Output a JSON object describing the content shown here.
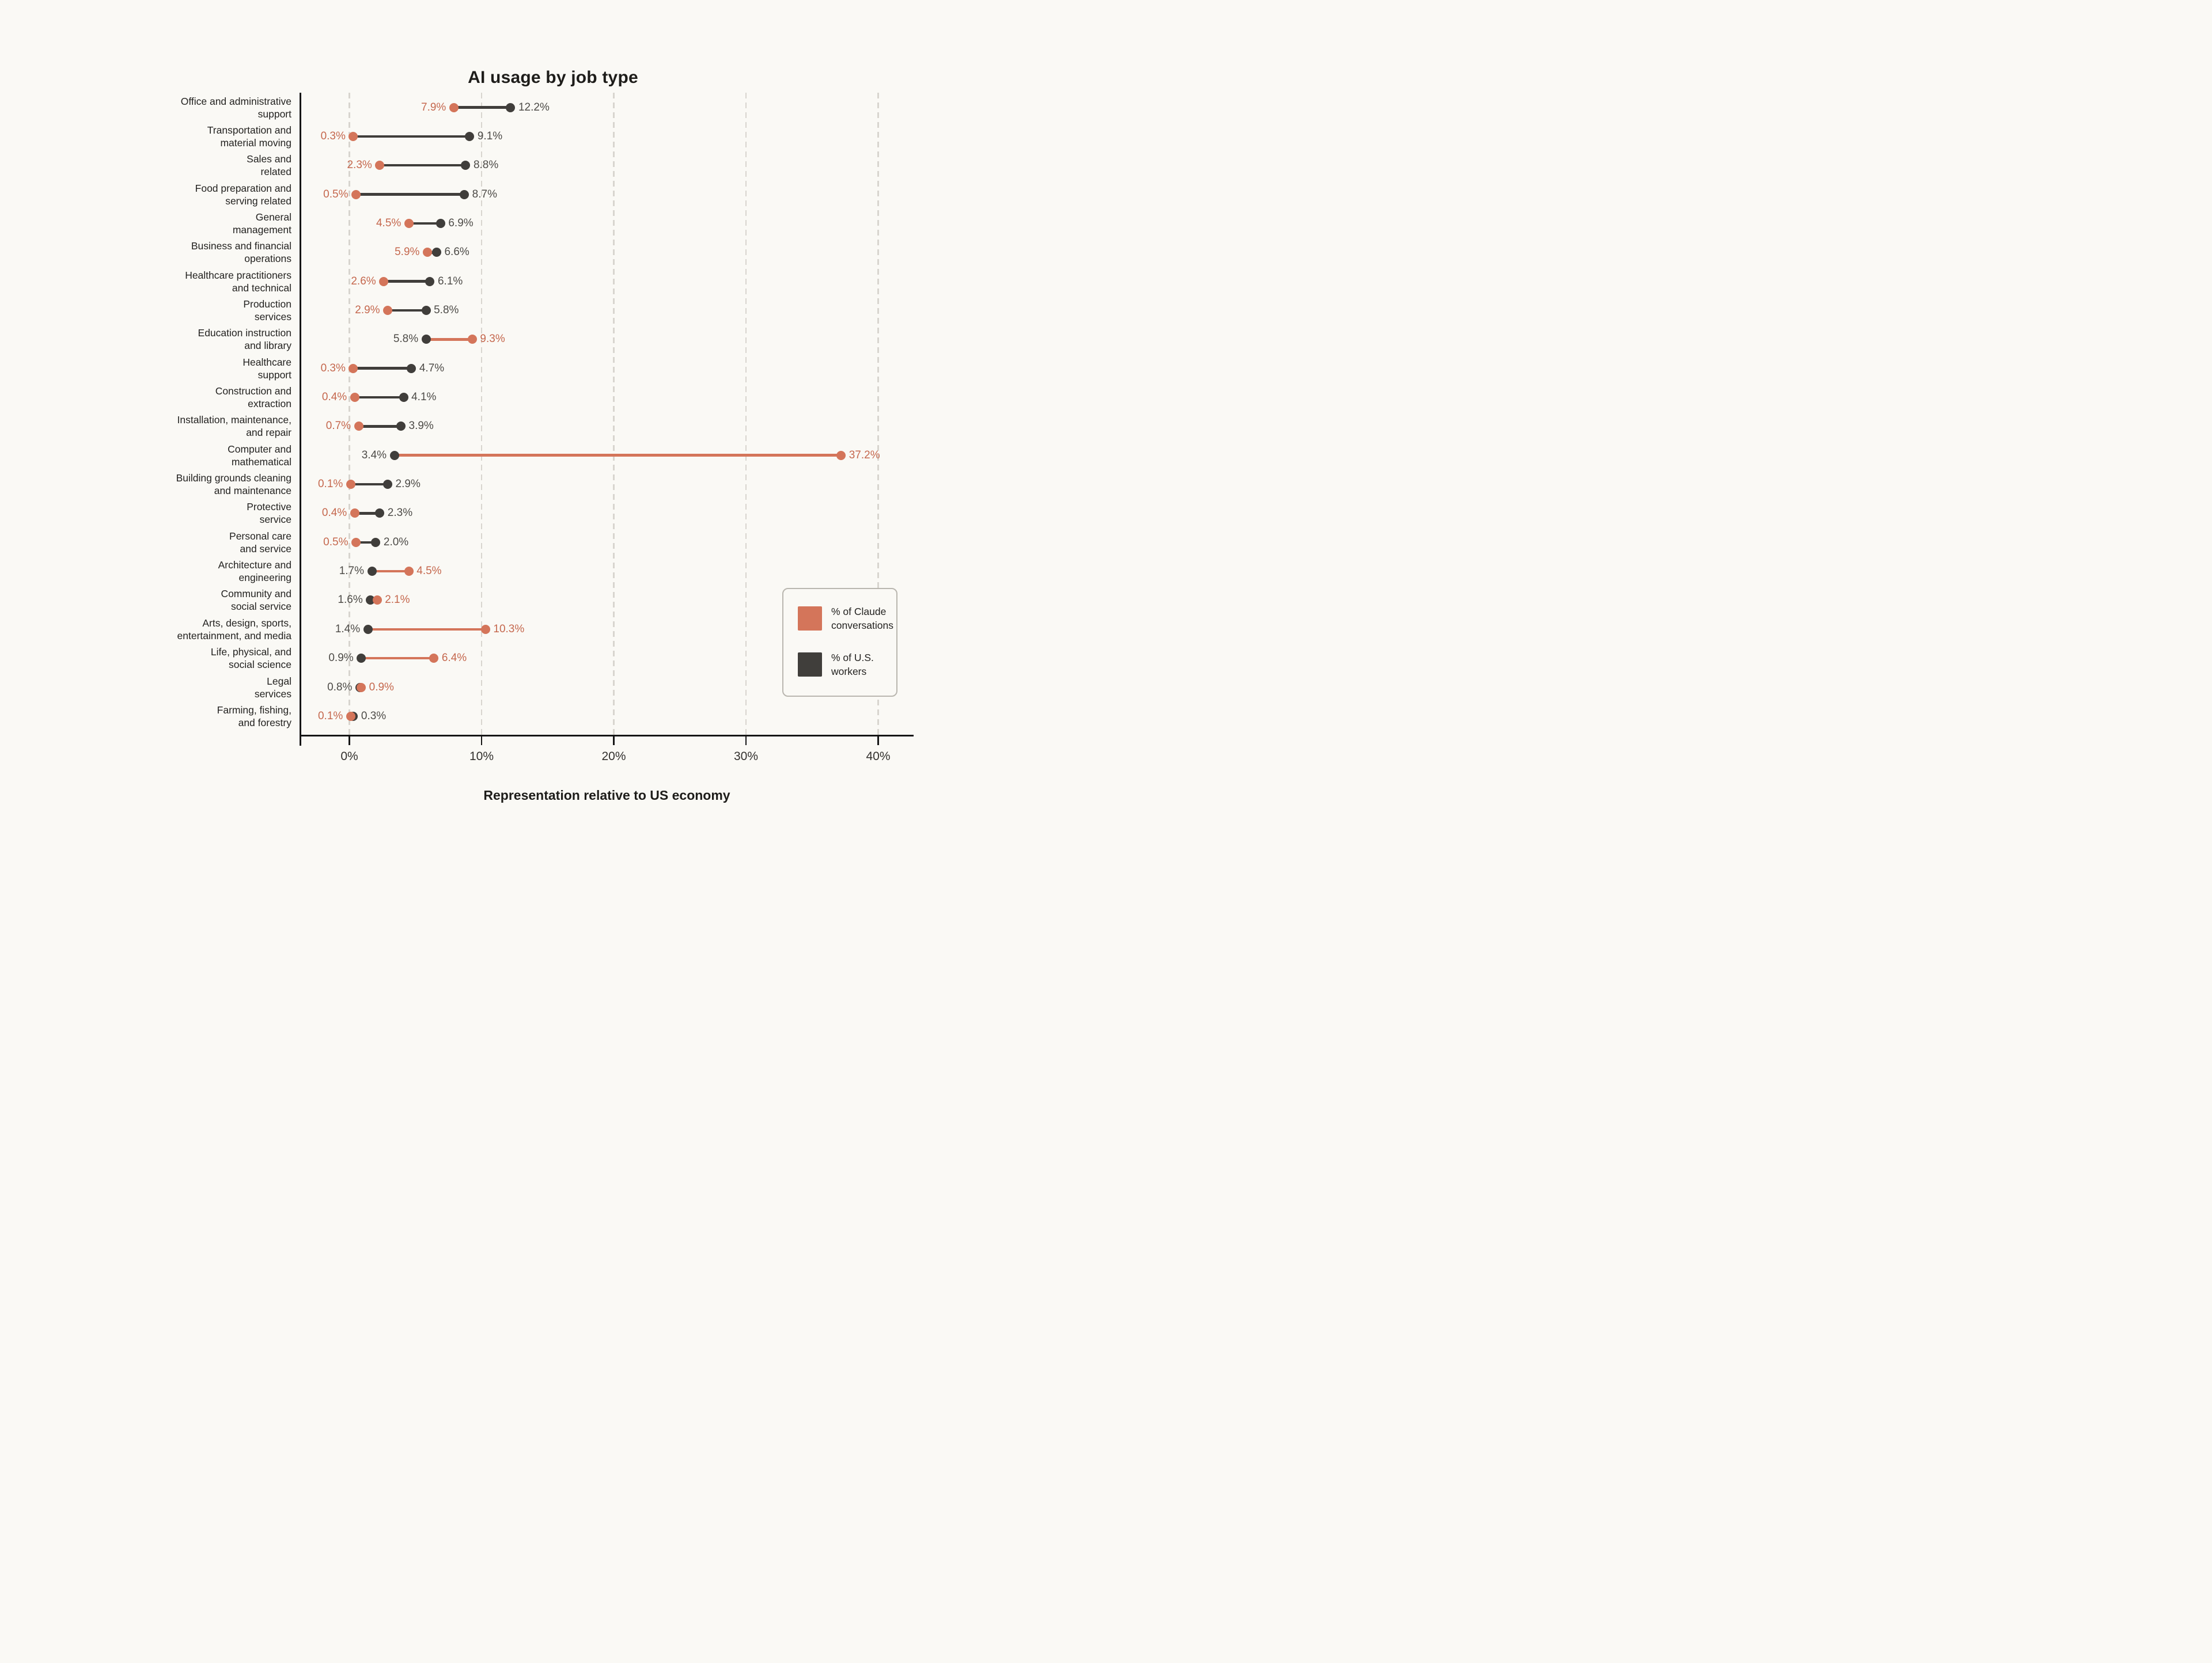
{
  "header": {
    "title": "AI usage by job type"
  },
  "x_axis": {
    "label": "Representation relative to US economy"
  },
  "legend": {
    "items": [
      {
        "label": "% of Claude\nconversations",
        "series": "claude",
        "color": "#D4755A"
      },
      {
        "label": "% of U.S.\nworkers",
        "series": "workers",
        "color": "#403E3B"
      }
    ]
  },
  "colors": {
    "background": "#FAF9F5",
    "claude_dot": "#D4755A",
    "claude_text": "#C5684E",
    "workers_dot": "#403E3B",
    "workers_text": "#4D4B47",
    "gridline": "#D8D5CF",
    "axis": "#161616",
    "text": "#232220"
  },
  "chart_data": {
    "type": "scatter",
    "variant": "dumbbell",
    "title": "AI usage by job type",
    "xlabel": "Representation relative to US economy",
    "xlim": [
      0,
      40
    ],
    "x_tick_values": [
      0,
      10,
      20,
      30,
      40
    ],
    "x_tick_labels": [
      "0%",
      "10%",
      "20%",
      "30%",
      "40%"
    ],
    "grid": "dashed-vertical",
    "legend_position": "right-bottom",
    "categories": [
      "Office and administrative support",
      "Transportation and material moving",
      "Sales and related",
      "Food preparation and serving related",
      "General management",
      "Business and financial operations",
      "Healthcare practitioners and technical",
      "Production services",
      "Education instruction and library",
      "Healthcare support",
      "Construction and extraction",
      "Installation, maintenance, and repair",
      "Computer and mathematical",
      "Building grounds cleaning and maintenance",
      "Protective service",
      "Personal care and service",
      "Architecture and engineering",
      "Community and social service",
      "Arts, design, sports, entertainment, and media",
      "Life, physical, and social science",
      "Legal services",
      "Farming, fishing, and forestry"
    ],
    "series": [
      {
        "name": "% of Claude conversations",
        "values": [
          7.9,
          0.3,
          2.3,
          0.5,
          4.5,
          5.9,
          2.6,
          2.9,
          9.3,
          0.3,
          0.4,
          0.7,
          37.2,
          0.1,
          0.4,
          0.5,
          4.5,
          2.1,
          10.3,
          6.4,
          0.9,
          0.1
        ]
      },
      {
        "name": "% of U.S. workers",
        "values": [
          12.2,
          9.1,
          8.8,
          8.7,
          6.9,
          6.6,
          6.1,
          5.8,
          5.8,
          4.7,
          4.1,
          3.9,
          3.4,
          2.9,
          2.3,
          2.0,
          1.7,
          1.6,
          1.4,
          0.9,
          0.8,
          0.3
        ]
      }
    ],
    "rows": [
      {
        "category_lines": [
          "Office and administrative",
          "support"
        ],
        "claude": 7.9,
        "workers": 12.2,
        "claude_label": "7.9%",
        "workers_label": "12.2%"
      },
      {
        "category_lines": [
          "Transportation and",
          "material moving"
        ],
        "claude": 0.3,
        "workers": 9.1,
        "claude_label": "0.3%",
        "workers_label": "9.1%"
      },
      {
        "category_lines": [
          "Sales and",
          "related"
        ],
        "claude": 2.3,
        "workers": 8.8,
        "claude_label": "2.3%",
        "workers_label": "8.8%"
      },
      {
        "category_lines": [
          "Food preparation and",
          "serving related"
        ],
        "claude": 0.5,
        "workers": 8.7,
        "claude_label": "0.5%",
        "workers_label": "8.7%"
      },
      {
        "category_lines": [
          "General",
          "management"
        ],
        "claude": 4.5,
        "workers": 6.9,
        "claude_label": "4.5%",
        "workers_label": "6.9%"
      },
      {
        "category_lines": [
          "Business and financial",
          "operations"
        ],
        "claude": 5.9,
        "workers": 6.6,
        "claude_label": "5.9%",
        "workers_label": "6.6%"
      },
      {
        "category_lines": [
          "Healthcare practitioners",
          "and technical"
        ],
        "claude": 2.6,
        "workers": 6.1,
        "claude_label": "2.6%",
        "workers_label": "6.1%"
      },
      {
        "category_lines": [
          "Production",
          "services"
        ],
        "claude": 2.9,
        "workers": 5.8,
        "claude_label": "2.9%",
        "workers_label": "5.8%"
      },
      {
        "category_lines": [
          "Education instruction",
          "and library"
        ],
        "claude": 9.3,
        "workers": 5.8,
        "claude_label": "9.3%",
        "workers_label": "5.8%"
      },
      {
        "category_lines": [
          "Healthcare",
          "support"
        ],
        "claude": 0.3,
        "workers": 4.7,
        "claude_label": "0.3%",
        "workers_label": "4.7%"
      },
      {
        "category_lines": [
          "Construction and",
          "extraction"
        ],
        "claude": 0.4,
        "workers": 4.1,
        "claude_label": "0.4%",
        "workers_label": "4.1%"
      },
      {
        "category_lines": [
          "Installation, maintenance,",
          "and repair"
        ],
        "claude": 0.7,
        "workers": 3.9,
        "claude_label": "0.7%",
        "workers_label": "3.9%"
      },
      {
        "category_lines": [
          "Computer and",
          "mathematical"
        ],
        "claude": 37.2,
        "workers": 3.4,
        "claude_label": "37.2%",
        "workers_label": "3.4%"
      },
      {
        "category_lines": [
          "Building grounds cleaning",
          "and maintenance"
        ],
        "claude": 0.1,
        "workers": 2.9,
        "claude_label": "0.1%",
        "workers_label": "2.9%"
      },
      {
        "category_lines": [
          "Protective",
          "service"
        ],
        "claude": 0.4,
        "workers": 2.3,
        "claude_label": "0.4%",
        "workers_label": "2.3%"
      },
      {
        "category_lines": [
          "Personal care",
          "and service"
        ],
        "claude": 0.5,
        "workers": 2.0,
        "claude_label": "0.5%",
        "workers_label": "2.0%"
      },
      {
        "category_lines": [
          "Architecture and",
          "engineering"
        ],
        "claude": 4.5,
        "workers": 1.7,
        "claude_label": "4.5%",
        "workers_label": "1.7%"
      },
      {
        "category_lines": [
          "Community and",
          "social service"
        ],
        "claude": 2.1,
        "workers": 1.6,
        "claude_label": "2.1%",
        "workers_label": "1.6%"
      },
      {
        "category_lines": [
          "Arts, design, sports,",
          "entertainment, and media"
        ],
        "claude": 10.3,
        "workers": 1.4,
        "claude_label": "10.3%",
        "workers_label": "1.4%"
      },
      {
        "category_lines": [
          "Life, physical, and",
          "social science"
        ],
        "claude": 6.4,
        "workers": 0.9,
        "claude_label": "6.4%",
        "workers_label": "0.9%"
      },
      {
        "category_lines": [
          "Legal",
          "services"
        ],
        "claude": 0.9,
        "workers": 0.8,
        "claude_label": "0.9%",
        "workers_label": "0.8%"
      },
      {
        "category_lines": [
          "Farming, fishing,",
          "and forestry"
        ],
        "claude": 0.1,
        "workers": 0.3,
        "claude_label": "0.1%",
        "workers_label": "0.3%"
      }
    ]
  }
}
